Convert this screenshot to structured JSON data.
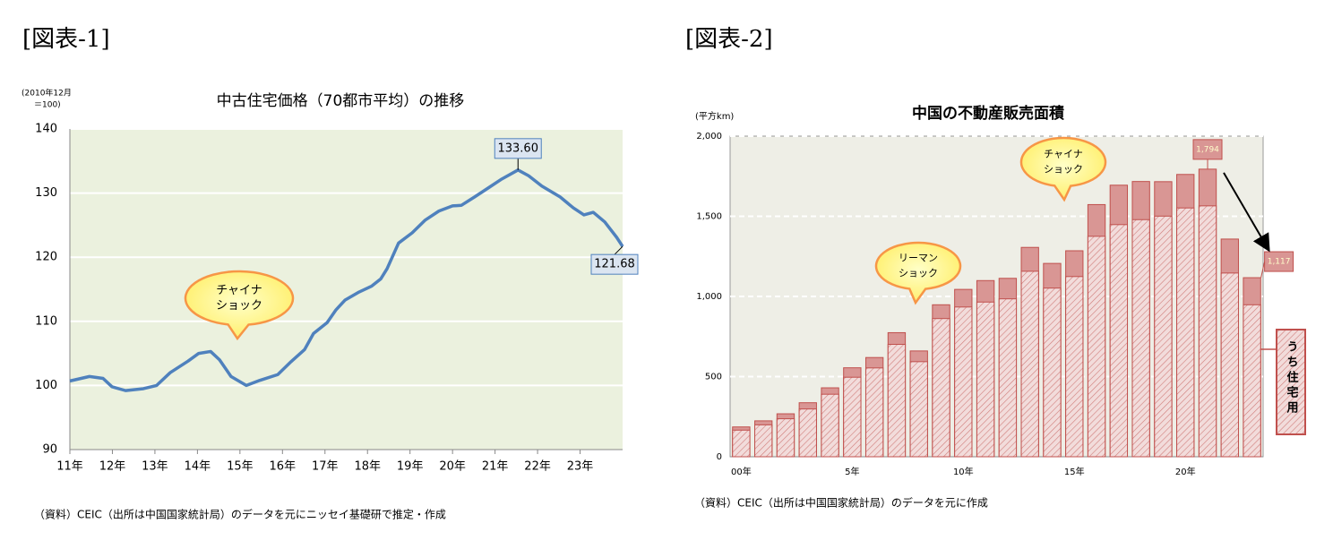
{
  "chart_data": [
    {
      "type": "line",
      "heading": "[図表-1]",
      "title": "中古住宅価格（70都市平均）の推移",
      "y_label": [
        "(2010年12月",
        "＝100)"
      ],
      "source": "（資料）CEIC（出所は中国国家統計局）のデータを元にニッセイ基礎研で推定・作成",
      "x": [
        11.0,
        11.46,
        11.78,
        11.99,
        12.31,
        12.73,
        13.04,
        13.36,
        13.78,
        14.03,
        14.31,
        14.52,
        14.79,
        15.15,
        15.47,
        15.89,
        16.2,
        16.52,
        16.73,
        17.05,
        17.26,
        17.47,
        17.78,
        18.1,
        18.31,
        18.46,
        18.73,
        19.05,
        19.36,
        19.68,
        20.0,
        20.21,
        20.52,
        20.84,
        21.16,
        21.54,
        21.79,
        22.1,
        22.53,
        22.84,
        23.09,
        23.31,
        23.58,
        23.86,
        24.0
      ],
      "values": [
        100.7,
        101.4,
        101.1,
        99.8,
        99.2,
        99.5,
        100,
        102,
        103.8,
        105,
        105.3,
        104,
        101.4,
        100,
        100.8,
        101.7,
        103.7,
        105.6,
        108.1,
        109.8,
        111.8,
        113.3,
        114.5,
        115.5,
        116.6,
        118.2,
        122.2,
        123.8,
        125.8,
        127.2,
        128,
        128.1,
        129.4,
        130.8,
        132.2,
        133.6,
        132.7,
        131.1,
        129.4,
        127.7,
        126.6,
        127,
        125.5,
        123.1,
        121.68
      ],
      "value_labels": [
        null,
        null,
        null,
        null,
        null,
        null,
        null,
        null,
        null,
        null,
        null,
        null,
        null,
        null,
        null,
        null,
        null,
        null,
        null,
        null,
        null,
        null,
        null,
        null,
        null,
        null,
        null,
        null,
        null,
        null,
        null,
        null,
        null,
        null,
        null,
        "133.60",
        null,
        null,
        null,
        null,
        null,
        null,
        null,
        null,
        "121.68"
      ],
      "color": "#4f81bd",
      "xlim": [
        11,
        24
      ],
      "xticks": [
        {
          "value": 11,
          "label": "11年"
        },
        {
          "value": 12,
          "label": "12年"
        },
        {
          "value": 13,
          "label": "13年"
        },
        {
          "value": 14,
          "label": "14年"
        },
        {
          "value": 15,
          "label": "15年"
        },
        {
          "value": 16,
          "label": "16年"
        },
        {
          "value": 17,
          "label": "17年"
        },
        {
          "value": 18,
          "label": "18年"
        },
        {
          "value": 19,
          "label": "19年"
        },
        {
          "value": 20,
          "label": "20年"
        },
        {
          "value": 21,
          "label": "21年"
        },
        {
          "value": 22,
          "label": "22年"
        },
        {
          "value": 23,
          "label": "23年"
        }
      ],
      "ylim": [
        90,
        140
      ],
      "yticks": [
        90,
        100,
        110,
        120,
        130,
        140
      ],
      "grid": true,
      "grid_style": "solid",
      "annotations": [
        [
          "チャイナ",
          "ショック"
        ]
      ]
    },
    {
      "type": "bar",
      "heading": "[図表-2]",
      "title": "中国の不動産販売面積",
      "y_label": "(平方km)",
      "source": "（資料）CEIC（出所は中国国家統計局）のデータを元に作成",
      "categories": [
        "00年",
        null,
        null,
        null,
        null,
        "5年",
        null,
        null,
        null,
        null,
        "10年",
        null,
        null,
        null,
        null,
        "15年",
        null,
        null,
        null,
        null,
        "20年",
        null,
        null,
        null
      ],
      "series": [
        {
          "color": "#d99694",
          "values": [
            186,
            224,
            268,
            337,
            430,
            555,
            619,
            774,
            660,
            948,
            1044,
            1099,
            1113,
            1306,
            1206,
            1285,
            1573,
            1694,
            1717,
            1716,
            1761,
            1794,
            1358,
            1117
          ],
          "value_labels": [
            null,
            null,
            null,
            null,
            null,
            null,
            null,
            null,
            null,
            null,
            null,
            null,
            null,
            null,
            null,
            null,
            null,
            null,
            null,
            null,
            null,
            "1,794",
            null,
            "1,117"
          ]
        },
        {
          "name": "うち住宅用",
          "color": "#f2dcdb",
          "pattern": "hatch",
          "values": [
            166,
            199,
            237,
            298,
            390,
            496,
            554,
            701,
            593,
            862,
            934,
            965,
            985,
            1157,
            1052,
            1124,
            1375,
            1448,
            1479,
            1501,
            1552,
            1565,
            1146,
            948
          ]
        }
      ],
      "ylim": [
        0,
        2000
      ],
      "yticks": [
        0,
        500,
        {
          "value": 1000,
          "label": "1,000"
        },
        {
          "value": 1500,
          "label": "1,500"
        },
        {
          "value": 2000,
          "label": "2,000"
        }
      ],
      "grid": true,
      "grid_style": "dashed",
      "legend": "right",
      "annotations": [
        [
          "リーマン",
          "ショック"
        ],
        [
          "チャイナ",
          "ショック"
        ]
      ]
    }
  ]
}
